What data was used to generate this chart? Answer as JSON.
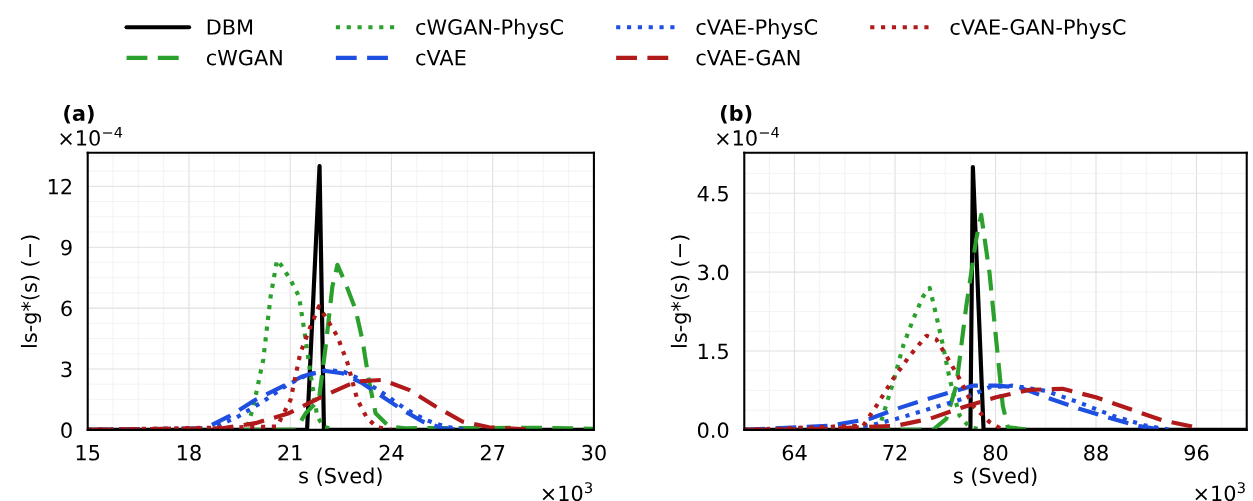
{
  "chart_data": [
    {
      "type": "line",
      "title": "(a)",
      "xlabel": "s (Sved)",
      "ylabel": "ls-g*(s) (−)",
      "annotations": [
        "×10$^{−4}$",
        "×10$^{3}$"
      ],
      "xlim": [
        15,
        30
      ],
      "xticks": [
        15,
        18,
        21,
        24,
        27,
        30
      ],
      "ylim": [
        0,
        13.65
      ],
      "yticks": [
        0,
        3,
        6,
        9,
        12
      ],
      "grid": true,
      "legend": "top",
      "series": [
        {
          "name": "DBM",
          "color": "#000000",
          "line_style": "solid",
          "x": [
            15,
            21.5,
            21.87,
            22.0,
            30
          ],
          "values": [
            0,
            0,
            13.0,
            0,
            0
          ]
        },
        {
          "name": "cWGAN",
          "color": "#2ca02c",
          "line_style": "dashed",
          "x": [
            15,
            21.16,
            21.46,
            21.85,
            22.05,
            22.25,
            22.4,
            22.64,
            22.94,
            23.14,
            23.33,
            23.53,
            23.93,
            24.42,
            28.5,
            30
          ],
          "values": [
            0,
            0,
            0.82,
            1.48,
            4.1,
            7.06,
            8.13,
            7.22,
            5.91,
            4.43,
            2.46,
            0.82,
            0.16,
            0.08,
            0.1,
            0.05
          ]
        },
        {
          "name": "cWGAN-PhysC",
          "color": "#2ca02c",
          "line_style": "dotted",
          "x": [
            15,
            19.7,
            19.91,
            20.2,
            20.42,
            20.61,
            20.76,
            21.01,
            21.26,
            21.4,
            21.6,
            21.8,
            21.99,
            22.3
          ],
          "values": [
            0,
            0,
            1.15,
            3.45,
            6.57,
            8.37,
            8.05,
            7.39,
            6.57,
            5.09,
            2.79,
            0.66,
            0.16,
            0
          ]
        },
        {
          "name": "cVAE",
          "color": "#1f4fe0",
          "line_style": "dashed",
          "x": [
            15,
            18.49,
            19.18,
            19.97,
            20.76,
            21.36,
            21.95,
            22.54,
            23.14,
            23.73,
            24.32,
            24.92,
            25.51,
            26.1
          ],
          "values": [
            0,
            0.08,
            0.66,
            1.48,
            2.13,
            2.63,
            2.92,
            2.79,
            2.3,
            1.64,
            0.99,
            0.41,
            0.08,
            0
          ]
        },
        {
          "name": "cVAE-PhysC",
          "color": "#1f4fe0",
          "line_style": "dotted",
          "x": [
            15,
            18.6,
            19.4,
            20.2,
            20.9,
            21.5,
            22.1,
            22.6,
            23.2,
            23.8,
            24.4,
            25.0,
            25.6,
            26.3
          ],
          "values": [
            0,
            0.05,
            0.6,
            1.4,
            2.2,
            2.7,
            2.95,
            2.85,
            2.4,
            1.75,
            1.05,
            0.5,
            0.15,
            0
          ]
        },
        {
          "name": "cVAE-GAN",
          "color": "#b01a1a",
          "line_style": "dashed",
          "x": [
            15,
            18.98,
            19.97,
            20.96,
            21.95,
            22.94,
            23.73,
            24.52,
            25.31,
            26.1,
            26.89,
            28
          ],
          "values": [
            0,
            0.08,
            0.33,
            0.82,
            1.64,
            2.38,
            2.46,
            1.97,
            1.15,
            0.41,
            0.13,
            0.03
          ]
        },
        {
          "name": "cVAE-GAN-PhysC",
          "color": "#b01a1a",
          "line_style": "dotted",
          "x": [
            15,
            20.61,
            21.01,
            21.3,
            21.6,
            21.85,
            22.1,
            22.4,
            22.7,
            22.99,
            23.28,
            23.58,
            24
          ],
          "values": [
            0,
            0.16,
            1.48,
            3.78,
            5.09,
            6.08,
            5.42,
            4.6,
            3.28,
            1.48,
            0.57,
            0.13,
            0
          ]
        }
      ]
    },
    {
      "type": "line",
      "title": "(b)",
      "xlabel": "s (Sved)",
      "ylabel": "ls-g*(s) (−)",
      "annotations": [
        "×10$^{−4}$",
        "×10$^{3}$"
      ],
      "xlim": [
        60,
        100
      ],
      "xticks": [
        64,
        72,
        80,
        88,
        96
      ],
      "ylim": [
        0,
        5.27
      ],
      "yticks": [
        {
          "value": 0,
          "label": "0.0"
        },
        1.5,
        {
          "value": 3,
          "label": "3.0"
        },
        4.5
      ],
      "grid": true,
      "series": [
        {
          "color": "#000000",
          "line_style": "solid",
          "x": [
            60,
            78.0,
            78.2,
            79.05,
            100
          ],
          "values": [
            0,
            0,
            5.0,
            0,
            0
          ]
        },
        {
          "color": "#2ca02c",
          "line_style": "dashed",
          "x": [
            60,
            75.02,
            76.08,
            76.88,
            77.67,
            78.46,
            78.86,
            79.52,
            80.05,
            80.58,
            80.98,
            82.7
          ],
          "values": [
            0,
            0,
            0.21,
            0.84,
            2.35,
            3.62,
            4.09,
            2.99,
            1.72,
            0.46,
            0.05,
            0
          ]
        },
        {
          "color": "#2ca02c",
          "line_style": "dotted",
          "x": [
            60,
            70.79,
            71.85,
            72.65,
            73.44,
            74.24,
            74.76,
            75.29,
            75.82,
            76.35,
            77.14,
            77.94,
            79
          ],
          "values": [
            0,
            0.08,
            0.9,
            1.6,
            2.1,
            2.54,
            2.7,
            2.17,
            1.6,
            0.97,
            0.27,
            0.05,
            0
          ]
        },
        {
          "color": "#1f4fe0",
          "line_style": "dashed",
          "x": [
            60,
            66.83,
            70.0,
            72.12,
            74.24,
            76.35,
            78.2,
            80.05,
            81.9,
            84.02,
            86.67,
            89.31,
            91.43,
            93.3
          ],
          "values": [
            0,
            0.08,
            0.21,
            0.4,
            0.56,
            0.71,
            0.84,
            0.84,
            0.81,
            0.62,
            0.4,
            0.21,
            0.07,
            0
          ]
        },
        {
          "color": "#1f4fe0",
          "line_style": "dotted",
          "x": [
            60,
            70.0,
            72.12,
            74.76,
            77.41,
            79.52,
            81.37,
            84.02,
            86.67,
            89.31,
            91.96,
            94
          ],
          "values": [
            0,
            0.08,
            0.21,
            0.4,
            0.59,
            0.81,
            0.84,
            0.74,
            0.52,
            0.27,
            0.08,
            0
          ]
        },
        {
          "color": "#b01a1a",
          "line_style": "dashed",
          "x": [
            60,
            66.8,
            72.12,
            74.76,
            77.41,
            80.05,
            82.7,
            85.34,
            87.99,
            90.63,
            93.28,
            95.93
          ],
          "values": [
            0,
            0.02,
            0.08,
            0.21,
            0.43,
            0.62,
            0.76,
            0.78,
            0.62,
            0.4,
            0.18,
            0.05
          ]
        },
        {
          "color": "#b01a1a",
          "line_style": "dotted",
          "x": [
            60,
            69.47,
            70.53,
            71.85,
            73.17,
            74.5,
            75.29,
            76.08,
            77.14,
            78.2,
            79.52,
            80.58
          ],
          "values": [
            0,
            0.08,
            0.46,
            0.97,
            1.41,
            1.79,
            1.72,
            1.41,
            0.97,
            0.46,
            0.15,
            0
          ]
        }
      ]
    }
  ]
}
